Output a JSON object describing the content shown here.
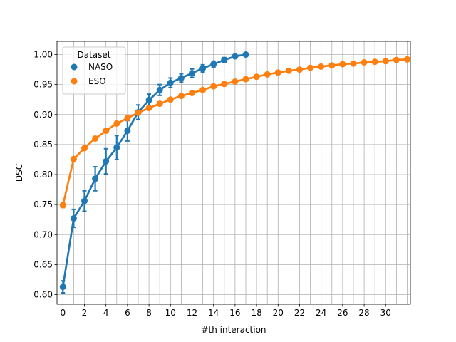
{
  "chart_data": {
    "type": "line",
    "xlabel": "#th interaction",
    "ylabel": "DSC",
    "xlim": [
      -0.55,
      32.3
    ],
    "ylim": [
      0.584,
      1.022
    ],
    "xticks": [
      0,
      2,
      4,
      6,
      8,
      10,
      12,
      14,
      16,
      18,
      20,
      22,
      24,
      26,
      28,
      30
    ],
    "yticks": [
      0.6,
      0.65,
      0.7,
      0.75,
      0.8,
      0.85,
      0.9,
      0.95,
      1.0
    ],
    "grid": true,
    "legend": {
      "title": "Dataset",
      "placement": "upper-left"
    },
    "series": [
      {
        "name": "NASO",
        "color": "#1f77b4",
        "x": [
          0,
          1,
          2,
          3,
          4,
          5,
          6,
          7,
          8,
          9,
          10,
          11,
          12,
          13,
          14,
          15,
          16,
          17
        ],
        "y": [
          0.613,
          0.727,
          0.756,
          0.793,
          0.822,
          0.845,
          0.873,
          0.904,
          0.924,
          0.941,
          0.953,
          0.961,
          0.969,
          0.977,
          0.984,
          0.991,
          0.997,
          1.0
        ],
        "err": [
          0.01,
          0.015,
          0.017,
          0.02,
          0.021,
          0.02,
          0.017,
          0.012,
          0.01,
          0.009,
          0.008,
          0.007,
          0.007,
          0.006,
          0.005,
          0.004,
          0.002,
          0.0
        ]
      },
      {
        "name": "ESO",
        "color": "#ff7f0e",
        "x": [
          0,
          1,
          2,
          3,
          4,
          5,
          6,
          7,
          8,
          9,
          10,
          11,
          12,
          13,
          14,
          15,
          16,
          17,
          18,
          19,
          20,
          21,
          22,
          23,
          24,
          25,
          26,
          27,
          28,
          29,
          30,
          31,
          32
        ],
        "y": [
          0.749,
          0.826,
          0.844,
          0.86,
          0.873,
          0.885,
          0.894,
          0.903,
          0.911,
          0.918,
          0.925,
          0.931,
          0.936,
          0.941,
          0.947,
          0.951,
          0.955,
          0.959,
          0.963,
          0.967,
          0.97,
          0.973,
          0.975,
          0.978,
          0.98,
          0.982,
          0.984,
          0.985,
          0.987,
          0.988,
          0.989,
          0.991,
          0.992
        ],
        "err": [
          0.004,
          0.003,
          0.002,
          0.002,
          0.002,
          0.002,
          0.002,
          0.002,
          0.002,
          0.001,
          0.001,
          0.001,
          0.001,
          0.001,
          0.001,
          0.001,
          0.001,
          0.001,
          0.001,
          0.001,
          0.001,
          0.001,
          0.001,
          0.001,
          0.001,
          0.001,
          0.001,
          0.001,
          0.001,
          0.001,
          0.001,
          0.001,
          0.001
        ]
      }
    ]
  }
}
